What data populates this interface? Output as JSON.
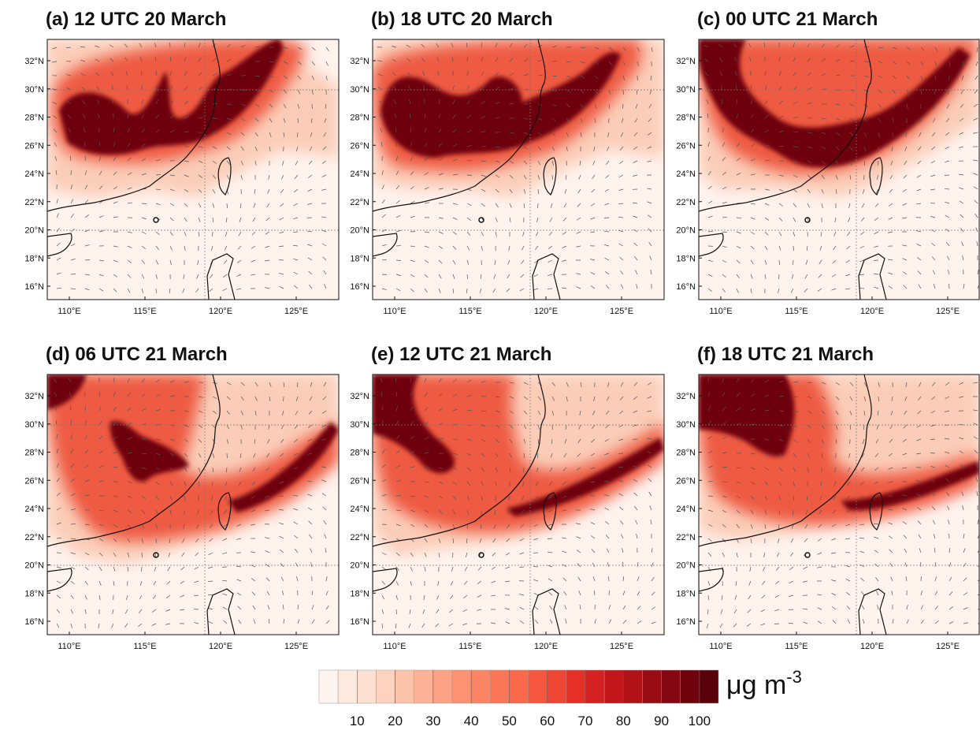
{
  "panels": [
    {
      "title": "(a) 12 UTC 20 March"
    },
    {
      "title": "(b) 18 UTC 20 March"
    },
    {
      "title": "(c) 00 UTC 21 March"
    },
    {
      "title": "(d) 06 UTC 21 March"
    },
    {
      "title": "(e) 12 UTC 21 March"
    },
    {
      "title": "(f) 18 UTC 21 March"
    }
  ],
  "lat_labels": [
    "32°N",
    "30°N",
    "28°N",
    "26°N",
    "24°N",
    "22°N",
    "20°N",
    "18°N",
    "16°N"
  ],
  "lon_labels": [
    "110°E",
    "115°E",
    "120°E",
    "125°E"
  ],
  "colorbar": {
    "ticks": [
      10,
      20,
      30,
      40,
      50,
      60,
      70,
      80,
      90,
      100
    ],
    "lim": [
      0,
      105
    ],
    "colors": [
      "#fff5f0",
      "#fee9df",
      "#fee0d2",
      "#fdd2bf",
      "#fcc3ab",
      "#fcb398",
      "#fca285",
      "#fc9272",
      "#fb8464",
      "#fb7757",
      "#fb694a",
      "#f5573e",
      "#ef4533",
      "#e43027",
      "#d42020",
      "#c3161b",
      "#b11218",
      "#9a0c14",
      "#840711",
      "#6e030d",
      "#5a000a"
    ],
    "unit": "μg m",
    "unit_exponent": "-3"
  }
}
